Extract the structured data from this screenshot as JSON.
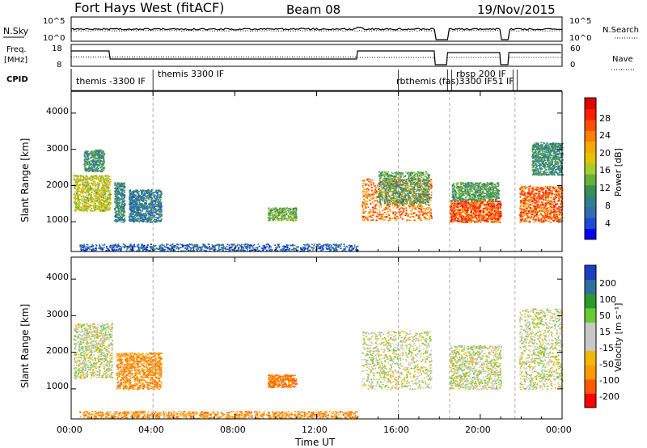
{
  "header": {
    "station": "Fort Hays West (fitACF)",
    "beam": "Beam 08",
    "date": "19/Nov/2015"
  },
  "strips": {
    "nsky_label": "N.Sky",
    "nsearch_label": "N.Search",
    "nsky_ticks": [
      "10^5",
      "10^0"
    ],
    "nsearch_ticks": [
      "10^5",
      "10^0"
    ],
    "freq_label_1": "Freq.",
    "freq_label_2": "[MHz]",
    "freq_ticks": [
      "18",
      "8"
    ],
    "nave_label": "Nave",
    "nave_ticks": [
      "60",
      "0"
    ],
    "cpid_label": "CPID",
    "cpid_texts": [
      "themis -3300 IF",
      "themis 3300 IF",
      "rbthemis (fas)3300 IF51 IF",
      "rbsp 200 IF"
    ]
  },
  "colorbars": {
    "power_label": "Power [dB]",
    "power_ticks": [
      "28",
      "24",
      "20",
      "16",
      "12",
      "8",
      "4"
    ],
    "power_colors": [
      "#0000ff",
      "#1d4bd8",
      "#2f6fb0",
      "#2f7f8f",
      "#3a8f55",
      "#67b236",
      "#a7cc30",
      "#e6c200",
      "#f5a800",
      "#ff7f00",
      "#ff4e00",
      "#ff1e00",
      "#e00000"
    ],
    "velocity_label": "Velocity [m s⁻¹]",
    "velocity_ticks": [
      "200",
      "100",
      "50",
      "15",
      "-15",
      "-50",
      "-100",
      "-200"
    ],
    "velocity_colors": [
      "#ff0000",
      "#ff5a00",
      "#ff9a00",
      "#f2b800",
      "#c8c8c8",
      "#c8c8c8",
      "#66cc33",
      "#2a9a2a",
      "#2f6f9f",
      "#1b3fbf"
    ]
  },
  "axes": {
    "ylabel": "Slant Range [km]",
    "xlabel": "Time UT",
    "yticks": [
      "4000",
      "3000",
      "2000",
      "1000"
    ],
    "xticks": [
      "00:00",
      "04:00",
      "08:00",
      "12:00",
      "16:00",
      "20:00",
      "00:00"
    ]
  },
  "chart_data": [
    {
      "type": "heatmap",
      "panel": "power",
      "x_range_hours": [
        0,
        24
      ],
      "y_range_km": [
        180,
        4600
      ],
      "colorscale": "power_dB",
      "clim": [
        0,
        32
      ],
      "marker_times_hours": [
        4.0,
        16.0,
        18.5,
        21.7
      ],
      "regions": [
        {
          "x": [
            0.1,
            1.9
          ],
          "y": [
            1300,
            2300
          ],
          "value": 17
        },
        {
          "x": [
            0.6,
            1.6
          ],
          "y": [
            2400,
            3000
          ],
          "value": 10
        },
        {
          "x": [
            2.1,
            2.6
          ],
          "y": [
            1000,
            2100
          ],
          "value": 9
        },
        {
          "x": [
            2.8,
            4.4
          ],
          "y": [
            1000,
            1900
          ],
          "value": 8
        },
        {
          "x": [
            9.6,
            11.0
          ],
          "y": [
            1050,
            1400
          ],
          "value": 13
        },
        {
          "x": [
            0.4,
            14.0
          ],
          "y": [
            200,
            400
          ],
          "value": 6
        },
        {
          "x": [
            14.2,
            17.6
          ],
          "y": [
            1050,
            2200
          ],
          "value": 24
        },
        {
          "x": [
            15.0,
            17.5
          ],
          "y": [
            1500,
            2400
          ],
          "value": 12
        },
        {
          "x": [
            18.5,
            21.0
          ],
          "y": [
            1000,
            1600
          ],
          "value": 26
        },
        {
          "x": [
            18.6,
            20.9
          ],
          "y": [
            1600,
            2100
          ],
          "value": 12
        },
        {
          "x": [
            21.9,
            24.0
          ],
          "y": [
            1000,
            2000
          ],
          "value": 25
        },
        {
          "x": [
            22.5,
            24.0
          ],
          "y": [
            2300,
            3200
          ],
          "value": 10
        }
      ]
    },
    {
      "type": "heatmap",
      "panel": "velocity",
      "x_range_hours": [
        0,
        24
      ],
      "y_range_km": [
        180,
        4600
      ],
      "colorscale": "velocity_m_s",
      "clim": [
        -250,
        250
      ],
      "marker_times_hours": [
        4.0,
        16.0,
        18.5,
        21.7
      ],
      "regions": [
        {
          "x": [
            0.1,
            2.0
          ],
          "y": [
            1300,
            2800
          ],
          "value": 0
        },
        {
          "x": [
            2.2,
            4.4
          ],
          "y": [
            1000,
            2000
          ],
          "value": -60
        },
        {
          "x": [
            9.6,
            11.0
          ],
          "y": [
            1050,
            1400
          ],
          "value": -80
        },
        {
          "x": [
            0.4,
            14.0
          ],
          "y": [
            200,
            400
          ],
          "value": -60
        },
        {
          "x": [
            14.2,
            17.6
          ],
          "y": [
            1000,
            2600
          ],
          "value": 0
        },
        {
          "x": [
            18.5,
            21.0
          ],
          "y": [
            1000,
            2200
          ],
          "value": 0
        },
        {
          "x": [
            21.9,
            24.0
          ],
          "y": [
            1000,
            3200
          ],
          "value": 0
        }
      ]
    }
  ]
}
